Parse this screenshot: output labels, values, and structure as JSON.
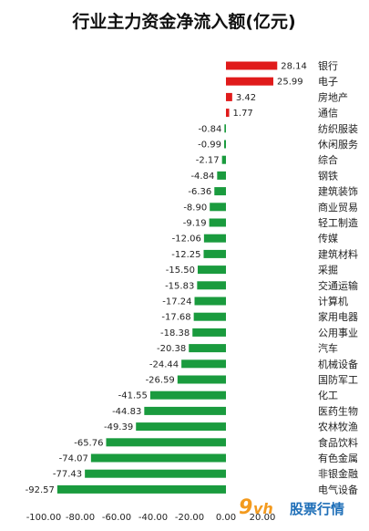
{
  "chart_data": {
    "type": "bar",
    "orientation": "horizontal",
    "title": "行业主力资金净流入额(亿元)",
    "categories": [
      "银行",
      "电子",
      "房地产",
      "通信",
      "纺织服装",
      "休闲服务",
      "综合",
      "钢铁",
      "建筑装饰",
      "商业贸易",
      "轻工制造",
      "传媒",
      "建筑材料",
      "采掘",
      "交通运输",
      "计算机",
      "家用电器",
      "公用事业",
      "汽车",
      "机械设备",
      "国防军工",
      "化工",
      "医药生物",
      "农林牧渔",
      "食品饮料",
      "有色金属",
      "非银金融",
      "电气设备"
    ],
    "values": [
      28.14,
      25.99,
      3.42,
      1.77,
      -0.84,
      -0.99,
      -2.17,
      -4.84,
      -6.36,
      -8.9,
      -9.19,
      -12.06,
      -12.25,
      -15.5,
      -15.83,
      -17.24,
      -17.68,
      -18.38,
      -20.38,
      -24.44,
      -26.59,
      -41.55,
      -44.83,
      -49.39,
      -65.76,
      -74.07,
      -77.43,
      -92.57
    ],
    "value_labels": [
      "28.14",
      "25.99",
      "3.42",
      "1.77",
      "-0.84",
      "-0.99",
      "-2.17",
      "-4.84",
      "-6.36",
      "-8.90",
      "-9.19",
      "-12.06",
      "-12.25",
      "-15.50",
      "-15.83",
      "-17.24",
      "-17.68",
      "-18.38",
      "-20.38",
      "-24.44",
      "-26.59",
      "-41.55",
      "-44.83",
      "-49.39",
      "-65.76",
      "-74.07",
      "-77.43",
      "-92.57"
    ],
    "xlim": [
      -100,
      40
    ],
    "xticks": [
      -100,
      -80,
      -60,
      -40,
      -20,
      0,
      20
    ],
    "xtick_labels": [
      "-100.00",
      "-80.00",
      "-60.00",
      "-40.00",
      "-20.00",
      "0.00",
      "20.00"
    ],
    "grid": false,
    "legend": "none",
    "colors": {
      "positive": "#e01b1b",
      "negative": "#1a9b3e"
    }
  },
  "watermark": {
    "nine": "9",
    "vh": "vh",
    "text": "股票行情"
  }
}
